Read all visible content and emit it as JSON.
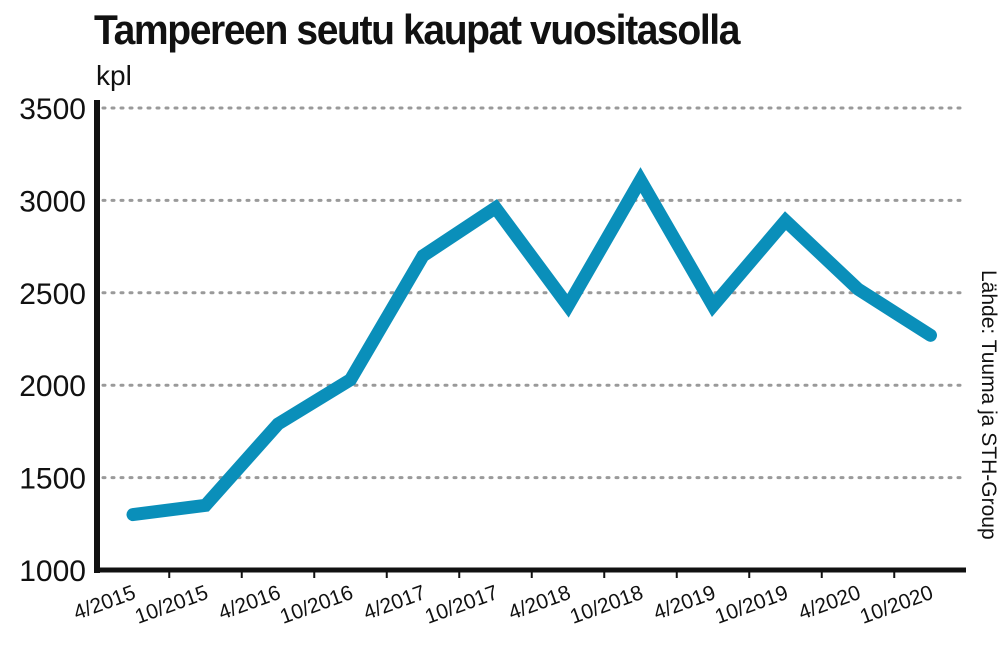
{
  "chart_data": {
    "type": "line",
    "title": "Tampereen seutu kaupat vuositasolla",
    "ylabel": "kpl",
    "source": "Lähde: Tuuma ja STH-Group",
    "ylim": [
      1000,
      3500
    ],
    "yticks": [
      1000,
      1500,
      2000,
      2500,
      3000,
      3500
    ],
    "grid": true,
    "categories": [
      "4/2015",
      "10/2015",
      "4/2016",
      "10/2016",
      "4/2017",
      "10/2017",
      "4/2018",
      "10/2018",
      "4/2019",
      "10/2019",
      "4/2020",
      "10/2020"
    ],
    "series": [
      {
        "values": [
          1300,
          1350,
          1790,
          2030,
          2700,
          2960,
          2430,
          3110,
          2430,
          2890,
          2520,
          2270
        ]
      }
    ],
    "colors": {
      "line": "#0a8fba",
      "axis": "#111111",
      "grid": "#9a9a9a"
    }
  }
}
